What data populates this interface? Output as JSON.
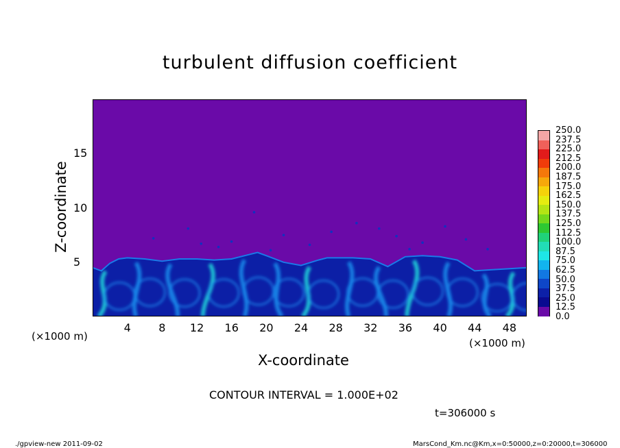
{
  "chart_data": {
    "type": "heatmap",
    "title": "turbulent diffusion coefficient",
    "xlabel": "X-coordinate",
    "ylabel": "Z-coordinate",
    "x_unit_label": "(×1000 m)",
    "xlim": [
      0,
      50
    ],
    "ylim": [
      0,
      20
    ],
    "x_ticks": [
      4,
      8,
      12,
      16,
      20,
      24,
      28,
      32,
      36,
      40,
      44,
      48
    ],
    "y_ticks": [
      5,
      10,
      15
    ],
    "contour_interval": "CONTOUR INTERVAL = 1.000E+02",
    "time_label": "t=306000 s",
    "mixed_layer_top": [
      [
        0,
        4.5
      ],
      [
        1,
        4.2
      ],
      [
        2,
        4.9
      ],
      [
        3,
        5.3
      ],
      [
        4,
        5.4
      ],
      [
        6,
        5.3
      ],
      [
        8,
        5.1
      ],
      [
        10,
        5.3
      ],
      [
        12,
        5.3
      ],
      [
        14,
        5.2
      ],
      [
        16,
        5.3
      ],
      [
        18,
        5.7
      ],
      [
        19,
        5.9
      ],
      [
        20,
        5.6
      ],
      [
        22,
        5.0
      ],
      [
        24,
        4.7
      ],
      [
        26,
        5.2
      ],
      [
        27,
        5.4
      ],
      [
        28,
        5.4
      ],
      [
        30,
        5.4
      ],
      [
        32,
        5.3
      ],
      [
        34,
        4.6
      ],
      [
        36,
        5.5
      ],
      [
        38,
        5.6
      ],
      [
        40,
        5.5
      ],
      [
        42,
        5.2
      ],
      [
        44,
        4.2
      ],
      [
        46,
        4.3
      ],
      [
        48,
        4.4
      ],
      [
        50,
        4.5
      ]
    ],
    "colorbar": {
      "labels": [
        "250.0",
        "237.5",
        "225.0",
        "212.5",
        "200.0",
        "187.5",
        "175.0",
        "162.5",
        "150.0",
        "137.5",
        "125.0",
        "112.5",
        "100.0",
        "87.5",
        "75.0",
        "62.5",
        "50.0",
        "37.5",
        "25.0",
        "12.5",
        "0.0"
      ],
      "colors": [
        "#f4a6a6",
        "#f0605a",
        "#e21b1b",
        "#f03c0a",
        "#f5780a",
        "#f6a80a",
        "#f5d20a",
        "#e5ec10",
        "#b4e414",
        "#74d81c",
        "#2ec832",
        "#20d27a",
        "#22dcb6",
        "#1ee6e6",
        "#12b4ee",
        "#1278e2",
        "#0e46c8",
        "#0c20a8",
        "#0a0a90",
        "#6a0aa8"
      ]
    }
  },
  "footer": {
    "left": "./gpview-new   2011-09-02",
    "right": "MarsCond_Km.nc@Km,x=0:50000,z=0:20000,t=306000"
  }
}
